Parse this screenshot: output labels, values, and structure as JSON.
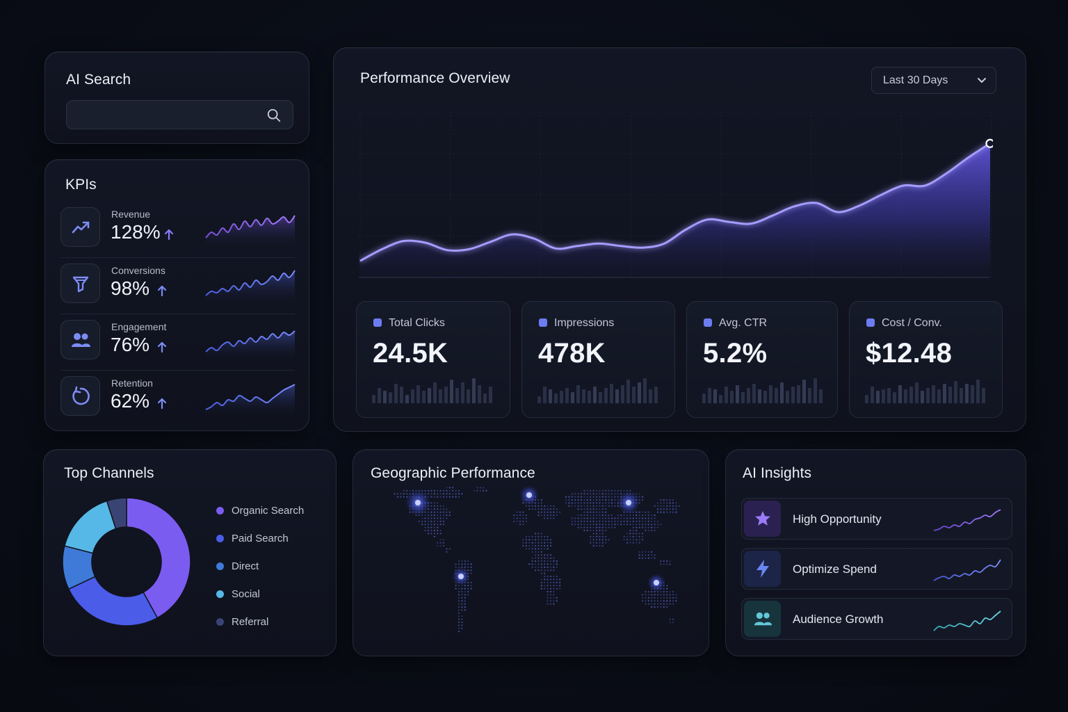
{
  "search": {
    "title": "AI Search",
    "value": "",
    "placeholder": ""
  },
  "kpis": {
    "title": "KPIs",
    "items": [
      {
        "label": "Revenue",
        "value": "128%",
        "trend": "up",
        "icon": "trending-up-icon"
      },
      {
        "label": "Conversions",
        "value": "98%",
        "trend": "up",
        "icon": "funnel-icon"
      },
      {
        "label": "Engagement",
        "value": "76%",
        "trend": "up",
        "icon": "users-icon"
      },
      {
        "label": "Retention",
        "value": "62%",
        "trend": "up",
        "icon": "refresh-icon"
      }
    ]
  },
  "performance": {
    "title": "Performance Overview",
    "range_label": "Last 30 Days",
    "metrics": [
      {
        "label": "Total Clicks",
        "value": "24.5K"
      },
      {
        "label": "Impressions",
        "value": "478K"
      },
      {
        "label": "Avg. CTR",
        "value": "5.2%"
      },
      {
        "label": "Cost / Conv.",
        "value": "$12.48"
      }
    ]
  },
  "chart_data": {
    "type": "area",
    "title": "Performance Overview",
    "xlabel": "",
    "ylabel": "",
    "grid": true,
    "y": [
      20,
      34,
      44,
      42,
      33,
      34,
      43,
      52,
      47,
      35,
      38,
      41,
      38,
      36,
      41,
      58,
      70,
      67,
      65,
      75,
      86,
      90,
      79,
      87,
      100,
      111,
      111,
      126,
      145,
      162
    ],
    "ylim": [
      0,
      200
    ]
  },
  "channels": {
    "title": "Top Channels",
    "items": [
      {
        "label": "Organic Search",
        "color": "#7b5cf0",
        "share": 42
      },
      {
        "label": "Paid Search",
        "color": "#4a5ce8",
        "share": 26
      },
      {
        "label": "Direct",
        "color": "#3f7ad8",
        "share": 11
      },
      {
        "label": "Social",
        "color": "#56b8e6",
        "share": 16
      },
      {
        "label": "Referral",
        "color": "#3a4474",
        "share": 5
      }
    ]
  },
  "geo": {
    "title": "Geographic Performance"
  },
  "insights": {
    "title": "AI Insights",
    "items": [
      {
        "label": "High Opportunity",
        "icon": "star-icon",
        "color": "#8e6cf5"
      },
      {
        "label": "Optimize Spend",
        "icon": "lightning-icon",
        "color": "#5b7ef0"
      },
      {
        "label": "Audience Growth",
        "icon": "users-icon",
        "color": "#5cc7d9"
      }
    ]
  }
}
